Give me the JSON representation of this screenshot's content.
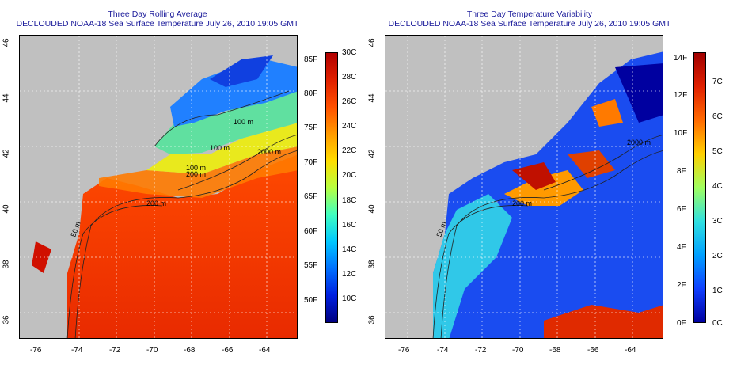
{
  "left_panel": {
    "title_line1": "Three Day Rolling Average",
    "title_line2": "DECLOUDED NOAA-18 Sea Surface Temperature July 26, 2010 19:05 GMT",
    "contours": [
      "100 m",
      "2000 m",
      "100 m",
      "200 m",
      "200 m",
      "50 m",
      "100 m"
    ],
    "colorbar": {
      "f_labels": [
        "85F",
        "80F",
        "75F",
        "70F",
        "65F",
        "60F",
        "55F",
        "50F"
      ],
      "c_labels": [
        "30C",
        "28C",
        "26C",
        "24C",
        "22C",
        "20C",
        "18C",
        "16C",
        "14C",
        "12C",
        "10C"
      ],
      "colors": [
        "#b10000",
        "#e02000",
        "#ff5000",
        "#ff9a00",
        "#ffdd00",
        "#b8ff40",
        "#40ffc0",
        "#00c8ff",
        "#0070ff",
        "#0020e0",
        "#000080"
      ]
    }
  },
  "right_panel": {
    "title_line1": "Three Day Temperature Variability",
    "title_line2": "DECLOUDED NOAA-18 Sea Surface Temperature July 26, 2010 19:05 GMT",
    "contours": [
      "2000 m",
      "200 m",
      "50 m"
    ],
    "colorbar": {
      "f_labels": [
        "14F",
        "12F",
        "10F",
        "8F",
        "6F",
        "4F",
        "2F",
        "0F"
      ],
      "c_labels": [
        "7C",
        "6C",
        "5C",
        "4C",
        "3C",
        "2C",
        "1C",
        "0C"
      ],
      "colors": [
        "#a00000",
        "#e02000",
        "#ff6a00",
        "#ffd000",
        "#a0ff60",
        "#30e0e0",
        "#00a0ff",
        "#1040ff",
        "#0000a0"
      ]
    }
  },
  "axes": {
    "lon_ticks": [
      "-76",
      "-74",
      "-72",
      "-70",
      "-68",
      "-66",
      "-64"
    ],
    "lat_ticks": [
      "46",
      "44",
      "42",
      "40",
      "38",
      "36"
    ]
  },
  "colors": {
    "land": "#c0c0c0",
    "title": "#1a1a9a"
  }
}
